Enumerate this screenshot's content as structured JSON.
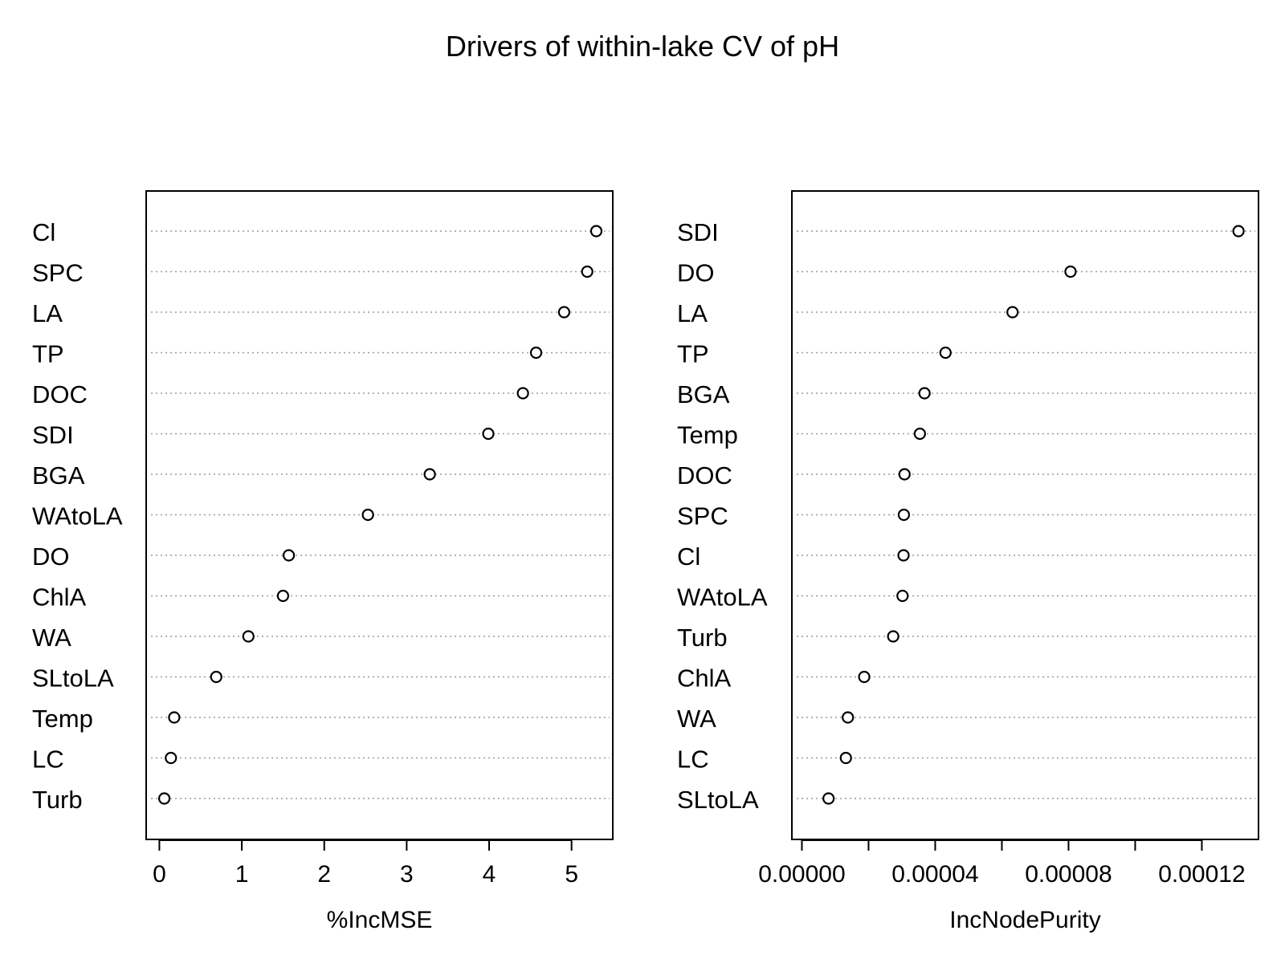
{
  "title": "Drivers of within-lake CV of pH",
  "chart_data": [
    {
      "type": "dotchart",
      "xlabel": "%IncMSE",
      "xlim": [
        -0.16,
        5.5
      ],
      "ticks": [
        0,
        1,
        2,
        3,
        4,
        5
      ],
      "tick_labels": [
        "0",
        "1",
        "2",
        "3",
        "4",
        "5"
      ],
      "grid": "dotted horizontal lines per category",
      "categories": [
        "Cl",
        "SPC",
        "LA",
        "TP",
        "DOC",
        "SDI",
        "BGA",
        "WAtoLA",
        "DO",
        "ChlA",
        "WA",
        "SLtoLA",
        "Temp",
        "LC",
        "Turb"
      ],
      "values": [
        5.3,
        5.19,
        4.91,
        4.57,
        4.41,
        3.99,
        3.28,
        2.53,
        1.57,
        1.5,
        1.08,
        0.69,
        0.18,
        0.14,
        0.06
      ]
    },
    {
      "type": "dotchart",
      "xlabel": "IncNodePurity",
      "xlim": [
        -3e-06,
        0.000137
      ],
      "ticks": [
        0.0,
        2e-05,
        4e-05,
        6e-05,
        8e-05,
        0.0001,
        0.00012
      ],
      "tick_labels": [
        "0.00000",
        "",
        "0.00004",
        "",
        "0.00008",
        "",
        "0.00012"
      ],
      "grid": "dotted horizontal lines per category",
      "categories": [
        "SDI",
        "DO",
        "LA",
        "TP",
        "BGA",
        "Temp",
        "DOC",
        "SPC",
        "Cl",
        "WAtoLA",
        "Turb",
        "ChlA",
        "WA",
        "LC",
        "SLtoLA"
      ],
      "values": [
        0.000131,
        8.06e-05,
        6.32e-05,
        4.31e-05,
        3.68e-05,
        3.54e-05,
        3.08e-05,
        3.06e-05,
        3.05e-05,
        3.02e-05,
        2.74e-05,
        1.87e-05,
        1.38e-05,
        1.32e-05,
        8e-06
      ]
    }
  ]
}
